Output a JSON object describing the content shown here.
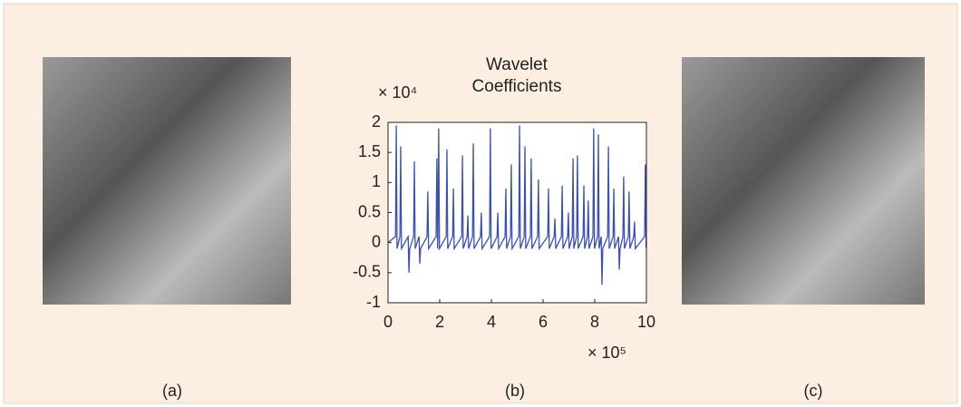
{
  "chart_data": {
    "type": "line",
    "title": "Wavelet Coefficients",
    "ylabel": "× 10⁴",
    "xlabel": "× 10⁵",
    "xlim": [
      0,
      10
    ],
    "ylim": [
      -1,
      2
    ],
    "xticks": [
      0,
      2,
      4,
      6,
      8,
      10
    ],
    "yticks": [
      -1,
      -0.5,
      0,
      0.5,
      1,
      1.5,
      2
    ],
    "series": [
      {
        "name": null,
        "color": "#3a4fb8",
        "x": [
          0,
          0.29,
          0.32,
          0.35,
          0.46,
          0.49,
          0.52,
          0.78,
          0.81,
          0.84,
          0.99,
          1.02,
          1.05,
          1.2,
          1.23,
          1.26,
          1.51,
          1.54,
          1.57,
          1.86,
          1.89,
          1.92,
          1.93,
          1.96,
          1.99,
          2.25,
          2.28,
          2.31,
          2.5,
          2.53,
          2.56,
          2.85,
          2.88,
          2.91,
          3.06,
          3.09,
          3.12,
          3.27,
          3.3,
          3.33,
          3.58,
          3.61,
          3.64,
          3.93,
          3.96,
          3.99,
          4.22,
          4.25,
          4.28,
          4.53,
          4.56,
          4.59,
          4.74,
          4.77,
          4.8,
          5.06,
          5.09,
          5.12,
          5.27,
          5.3,
          5.33,
          5.51,
          5.54,
          5.57,
          5.79,
          5.82,
          5.85,
          6.18,
          6.21,
          6.24,
          6.43,
          6.46,
          6.49,
          6.71,
          6.74,
          6.77,
          6.95,
          6.98,
          7.01,
          7.13,
          7.16,
          7.19,
          7.3,
          7.33,
          7.36,
          7.55,
          7.58,
          7.61,
          7.72,
          7.75,
          7.78,
          7.93,
          7.96,
          7.99,
          8.11,
          8.14,
          8.17,
          8.25,
          8.28,
          8.31,
          8.5,
          8.53,
          8.56,
          8.71,
          8.74,
          8.77,
          8.92,
          8.95,
          8.98,
          9.09,
          9.12,
          9.15,
          9.3,
          9.33,
          9.36,
          9.51,
          9.54,
          9.57,
          9.93,
          9.96,
          9.99,
          10
        ],
        "values": [
          0,
          0.1,
          1.95,
          -0.1,
          0.1,
          1.6,
          -0.1,
          0.1,
          -0.5,
          -0.1,
          0.1,
          1.35,
          -0.1,
          0.1,
          -0.35,
          -0.1,
          0.1,
          0.85,
          -0.1,
          0.1,
          1.4,
          -0.1,
          0.1,
          1.9,
          -0.1,
          0.1,
          1.55,
          -0.1,
          0.1,
          0.9,
          -0.1,
          0.1,
          1.45,
          -0.1,
          0.1,
          0.45,
          -0.1,
          0.1,
          1.65,
          -0.1,
          0.1,
          0.5,
          -0.1,
          0.1,
          1.9,
          -0.1,
          0.1,
          0.5,
          -0.1,
          0.1,
          0.9,
          -0.1,
          0.1,
          1.3,
          -0.1,
          0.1,
          1.95,
          -0.1,
          0.1,
          1.6,
          -0.1,
          0.1,
          1.4,
          -0.1,
          0.1,
          1.05,
          -0.1,
          0.1,
          0.9,
          -0.1,
          0.1,
          0.4,
          -0.1,
          0.1,
          0.95,
          -0.1,
          0.1,
          0.5,
          -0.1,
          0.1,
          1.4,
          -0.1,
          0.1,
          1.45,
          -0.1,
          0.1,
          0.95,
          -0.1,
          0.1,
          0.7,
          -0.1,
          0.1,
          1.9,
          -0.1,
          0.1,
          1.8,
          -0.1,
          0.1,
          -0.7,
          -0.1,
          0.1,
          1.6,
          -0.1,
          0.1,
          0.9,
          -0.1,
          0.1,
          -0.45,
          -0.1,
          0.1,
          1.1,
          -0.1,
          0.1,
          0.85,
          -0.1,
          0.1,
          0.35,
          -0.1,
          0.1,
          1.3,
          -0.1,
          0
        ]
      }
    ]
  },
  "panels": [
    "(a)",
    "(b)",
    "(c)"
  ]
}
